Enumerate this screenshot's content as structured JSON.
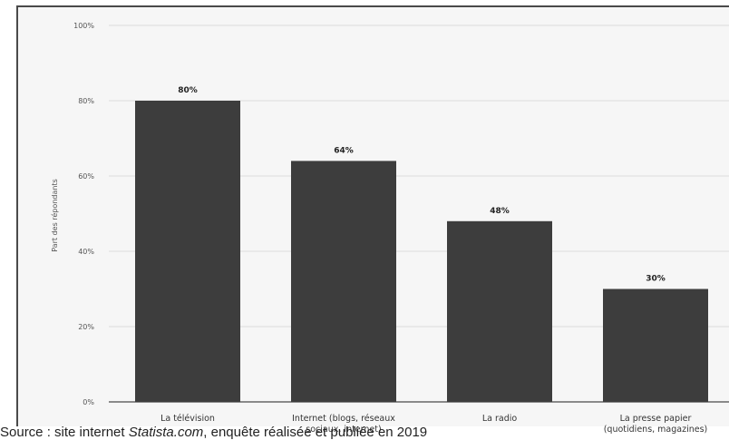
{
  "chart_data": {
    "type": "bar",
    "title": "",
    "xlabel": "",
    "ylabel": "Part des répondants",
    "ylim": [
      0,
      100
    ],
    "yticks": [
      0,
      20,
      40,
      60,
      80,
      100
    ],
    "ytick_labels": [
      "0%",
      "20%",
      "40%",
      "60%",
      "80%",
      "100%"
    ],
    "categories": [
      "La télévision",
      "Internet (blogs, réseaux sociaux, internet)",
      "La radio",
      "La presse papier (quotidiens, magazines)"
    ],
    "category_label_lines": [
      [
        "La télévision"
      ],
      [
        "Internet (blogs, réseaux",
        "sociaux, internet)"
      ],
      [
        "La radio"
      ],
      [
        "La presse papier",
        "(quotidiens, magazines)"
      ]
    ],
    "values": [
      80,
      64,
      48,
      30
    ],
    "data_labels": [
      "80%",
      "64%",
      "48%",
      "30%"
    ],
    "grid": true,
    "legend": "none",
    "colors": {
      "bar": "#3d3d3d",
      "grid": "#dcdcdc",
      "axis": "#4a4a4a",
      "text": "#333333",
      "panel": "#f6f6f6"
    }
  },
  "source": {
    "prefix": "Source : site internet ",
    "site": "Statista.com",
    "suffix": ", enquête réalisée et publiée en 2019"
  }
}
